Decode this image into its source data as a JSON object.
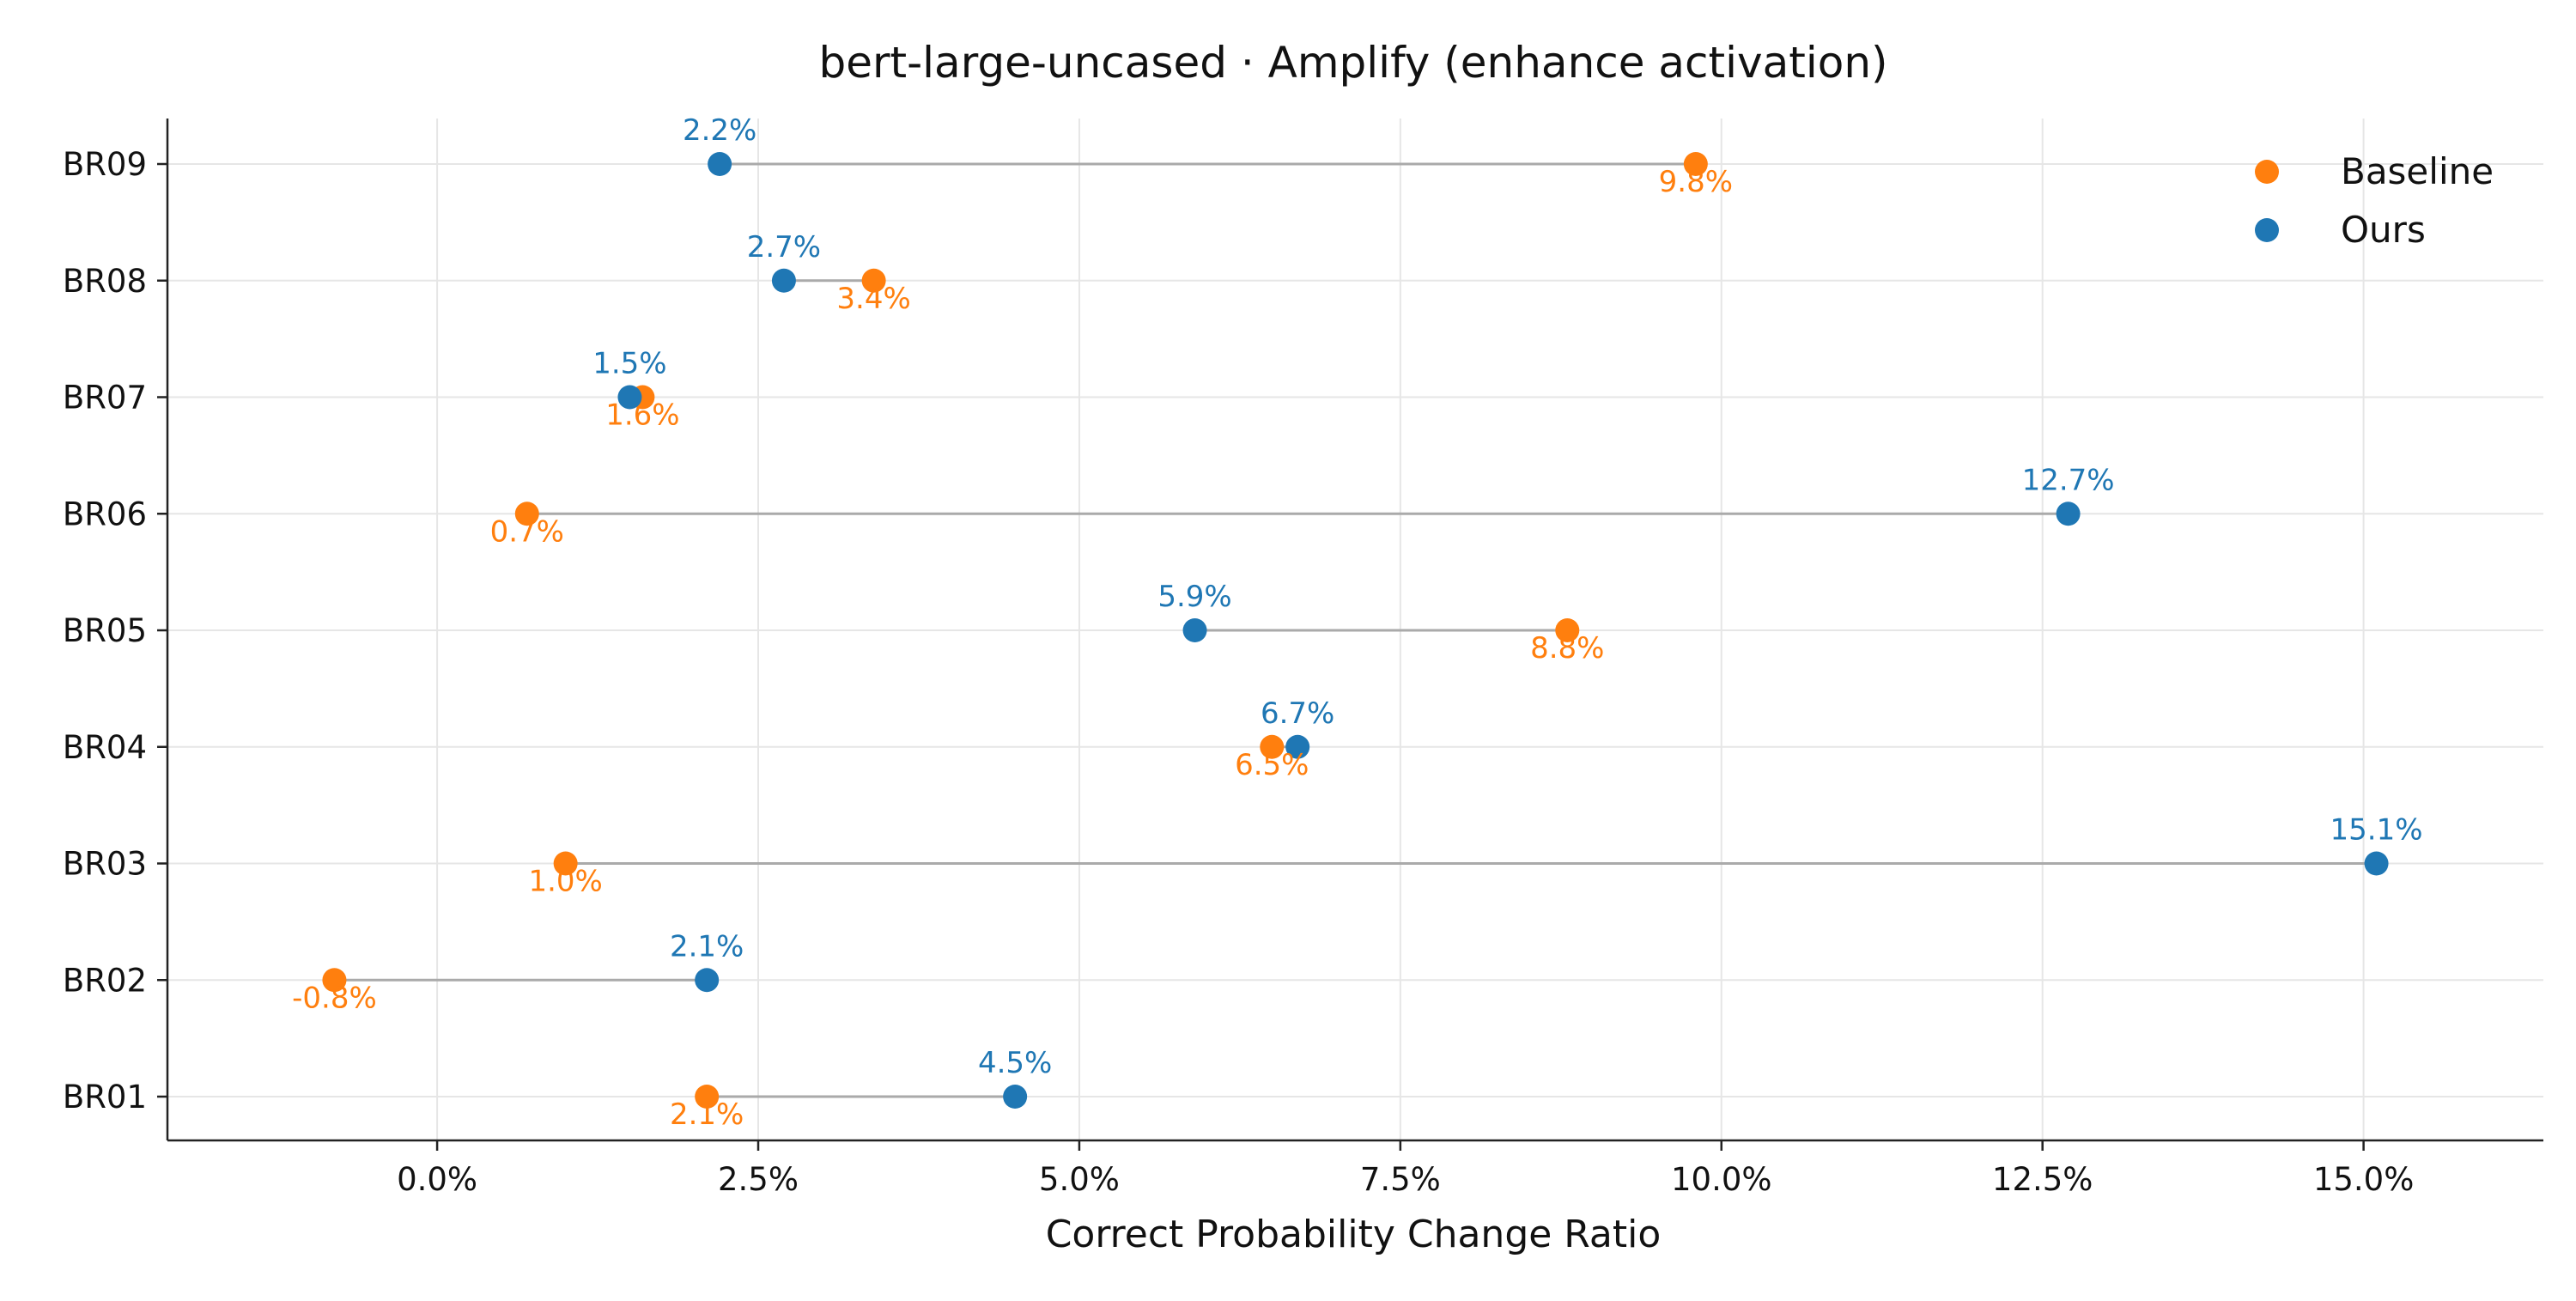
{
  "chart_data": {
    "type": "dumbbell",
    "title": "bert-large-uncased · Amplify (enhance activation)",
    "xlabel": "Correct Probability Change Ratio",
    "ylabel": "",
    "xlim": [
      -2.1,
      16.4
    ],
    "x_ticks": [
      0,
      2.5,
      5,
      7.5,
      10,
      12.5,
      15
    ],
    "x_tick_labels": [
      "0.0%",
      "2.5%",
      "5.0%",
      "7.5%",
      "10.0%",
      "12.5%",
      "15.0%"
    ],
    "grid": true,
    "legend_position": "top-right",
    "categories": [
      "BR01",
      "BR02",
      "BR03",
      "BR04",
      "BR05",
      "BR06",
      "BR07",
      "BR08",
      "BR09"
    ],
    "series": [
      {
        "name": "Baseline",
        "color": "#ff7f0e",
        "values": [
          2.1,
          -0.8,
          1.0,
          6.5,
          8.8,
          0.7,
          1.6,
          3.4,
          9.8
        ],
        "labels": [
          "2.1%",
          "-0.8%",
          "1.0%",
          "6.5%",
          "8.8%",
          "0.7%",
          "1.6%",
          "3.4%",
          "9.8%"
        ]
      },
      {
        "name": "Ours",
        "color": "#1f77b4",
        "values": [
          4.5,
          2.1,
          15.1,
          6.7,
          5.9,
          12.7,
          1.5,
          2.7,
          2.2
        ],
        "labels": [
          "4.5%",
          "2.1%",
          "15.1%",
          "6.7%",
          "5.9%",
          "12.7%",
          "1.5%",
          "2.7%",
          "2.2%"
        ]
      }
    ],
    "connector_color": "#aaaaaa",
    "grid_color": "#e6e6e6"
  }
}
